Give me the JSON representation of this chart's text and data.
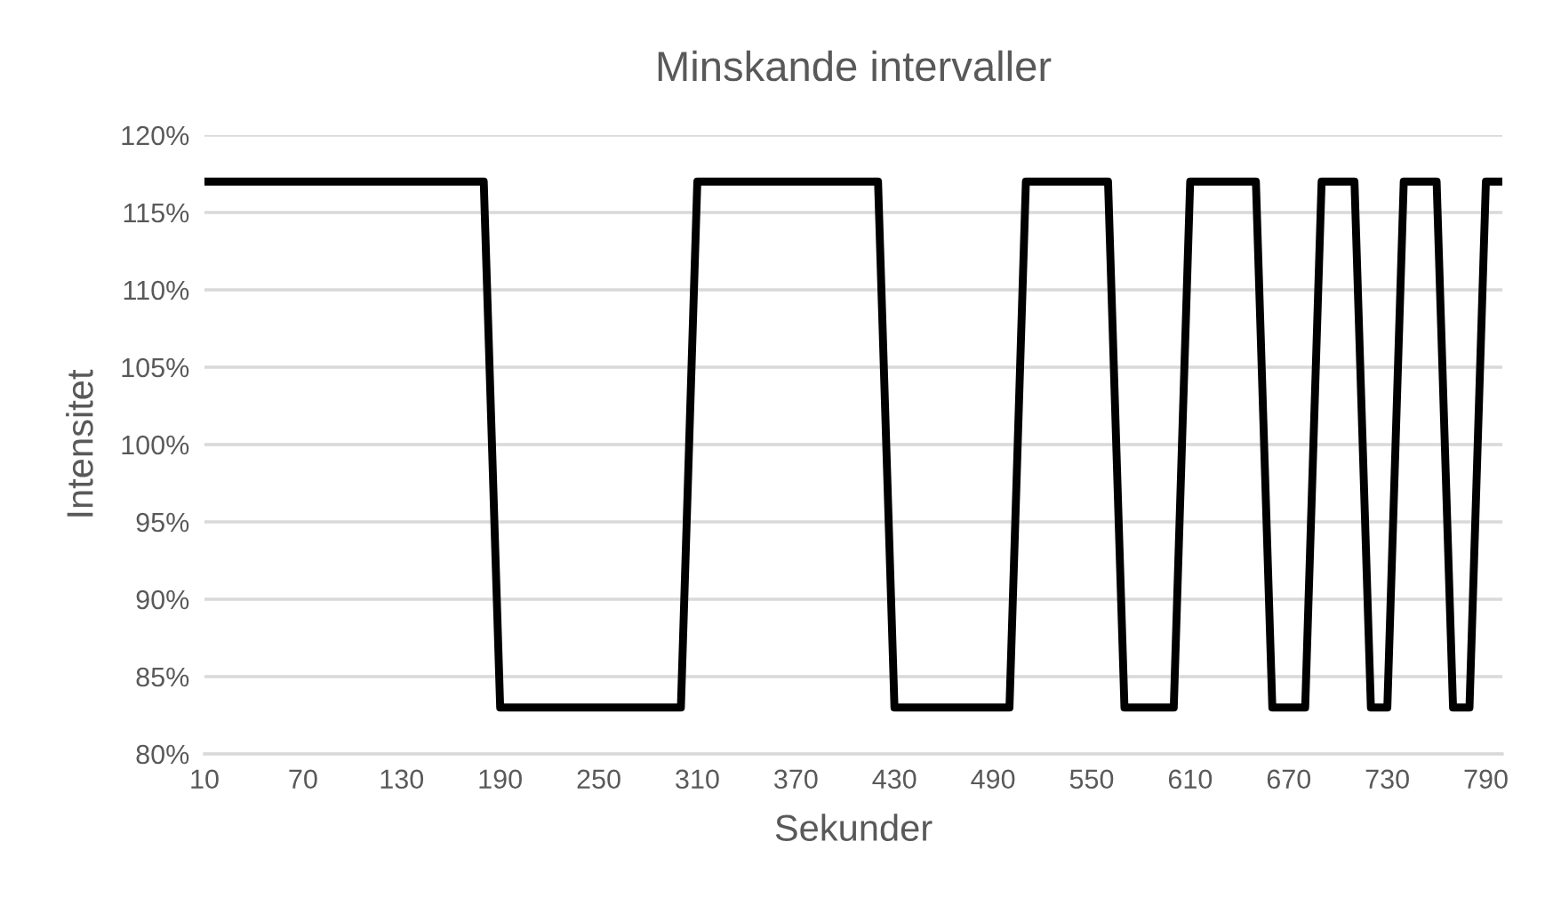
{
  "chart_data": {
    "type": "line",
    "title": "Minskande intervaller",
    "xlabel": "Sekunder",
    "ylabel": "Intensitet",
    "x": [
      10,
      20,
      30,
      40,
      50,
      60,
      70,
      80,
      90,
      100,
      110,
      120,
      130,
      140,
      150,
      160,
      170,
      180,
      190,
      200,
      210,
      220,
      230,
      240,
      250,
      260,
      270,
      280,
      290,
      300,
      310,
      320,
      330,
      340,
      350,
      360,
      370,
      380,
      390,
      400,
      410,
      420,
      430,
      440,
      450,
      460,
      470,
      480,
      490,
      500,
      510,
      520,
      530,
      540,
      550,
      560,
      570,
      580,
      590,
      600,
      610,
      620,
      630,
      640,
      650,
      660,
      670,
      680,
      690,
      700,
      710,
      720,
      730,
      740,
      750,
      760,
      770,
      780,
      790,
      800
    ],
    "series": [
      {
        "color": "#000000",
        "values": [
          117,
          117,
          117,
          117,
          117,
          117,
          117,
          117,
          117,
          117,
          117,
          117,
          117,
          117,
          117,
          117,
          117,
          117,
          83,
          83,
          83,
          83,
          83,
          83,
          83,
          83,
          83,
          83,
          83,
          83,
          117,
          117,
          117,
          117,
          117,
          117,
          117,
          117,
          117,
          117,
          117,
          117,
          83,
          83,
          83,
          83,
          83,
          83,
          83,
          83,
          117,
          117,
          117,
          117,
          117,
          117,
          83,
          83,
          83,
          83,
          117,
          117,
          117,
          117,
          117,
          83,
          83,
          83,
          117,
          117,
          117,
          83,
          83,
          117,
          117,
          117,
          83,
          83,
          117,
          117
        ]
      }
    ],
    "xlim": [
      10,
      800
    ],
    "xticks": [
      10,
      70,
      130,
      190,
      250,
      310,
      370,
      430,
      490,
      550,
      610,
      670,
      730,
      790
    ],
    "ylim": [
      80,
      120
    ],
    "yticks": [
      {
        "value": 80,
        "label": "80%"
      },
      {
        "value": 85,
        "label": "85%"
      },
      {
        "value": 90,
        "label": "90%"
      },
      {
        "value": 95,
        "label": "95%"
      },
      {
        "value": 100,
        "label": "100%"
      },
      {
        "value": 105,
        "label": "105%"
      },
      {
        "value": 110,
        "label": "110%"
      },
      {
        "value": 115,
        "label": "115%"
      },
      {
        "value": 120,
        "label": "120%"
      }
    ],
    "grid": "y",
    "marker": "none",
    "line_style": "solid",
    "legend": false
  }
}
